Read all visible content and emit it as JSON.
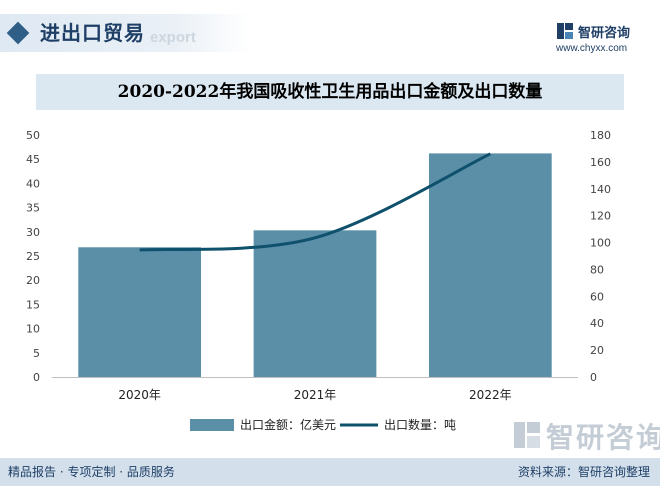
{
  "header": {
    "title": "进出口贸易",
    "subtitle": "export"
  },
  "logo": {
    "name": "智研咨询",
    "url": "www.chyxx.com"
  },
  "footer": {
    "left": "精品报告 · 专项定制 · 品质服务",
    "right": "资料来源：智研咨询整理"
  },
  "watermark": {
    "text": "智研咨询"
  },
  "colors": {
    "bar": "#5a8fa7",
    "line": "#0f506d",
    "title_band": "#dbe8f1",
    "footer": "#d3e0ec"
  },
  "chart_data": {
    "type": "bar",
    "title": "2020-2022年我国吸收性卫生用品出口金额及出口数量",
    "categories": [
      "2020年",
      "2021年",
      "2022年"
    ],
    "y_left": {
      "min": 0,
      "max": 50,
      "ticks": [
        "0",
        "5",
        "10",
        "15",
        "20",
        "25",
        "30",
        "35",
        "40",
        "45",
        "50"
      ]
    },
    "y_right": {
      "min": 0,
      "max": 180,
      "ticks": [
        "0",
        "20",
        "40",
        "60",
        "80",
        "100",
        "120",
        "140",
        "160",
        "180"
      ]
    },
    "series": [
      {
        "name": "出口金额：亿美元",
        "type": "bar",
        "axis": "left",
        "values": [
          26.8,
          30.3,
          46.2
        ]
      },
      {
        "name": "出口数量：吨",
        "type": "line",
        "axis": "right",
        "values": [
          94.5,
          103.5,
          166
        ]
      }
    ],
    "legend_position": "bottom"
  }
}
